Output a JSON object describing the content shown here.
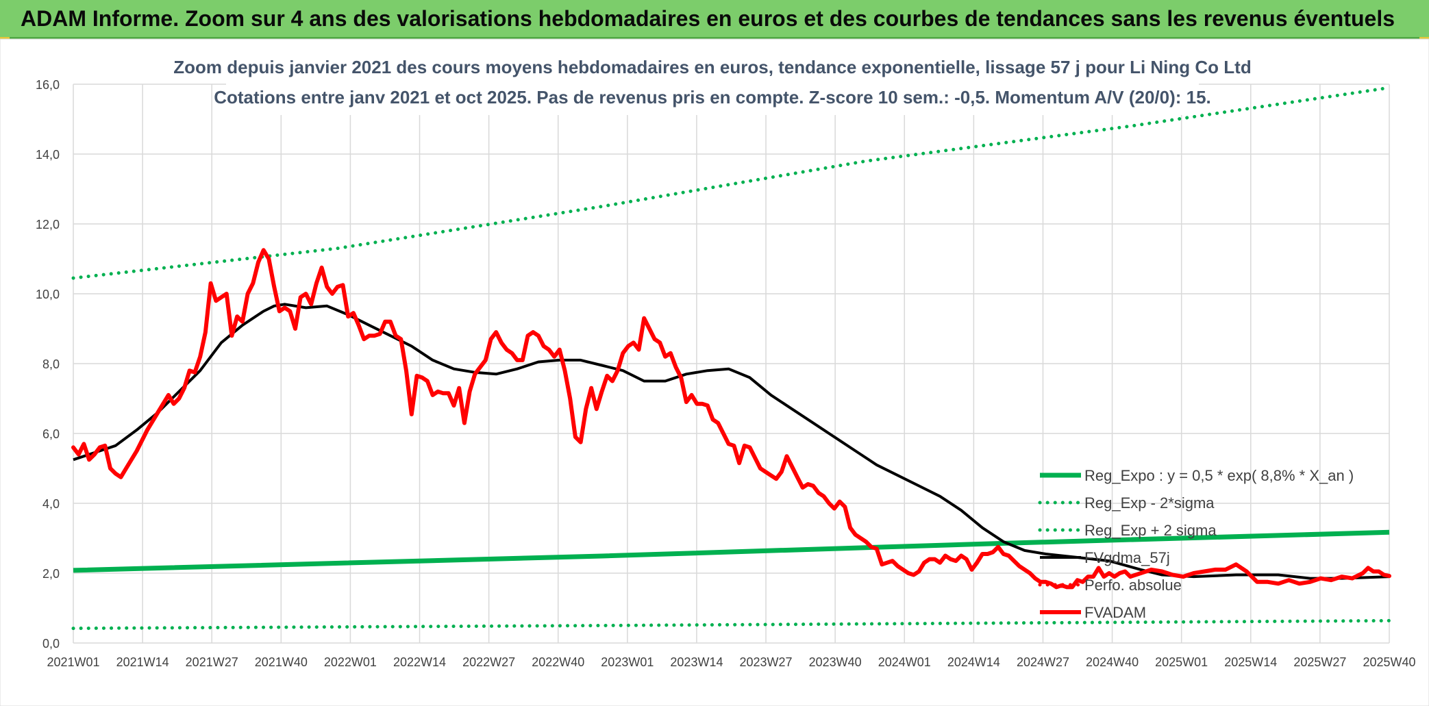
{
  "banner": {
    "title": "ADAM Informe. Zoom sur 4 ans des valorisations hebdomadaires en euros et des courbes de tendances sans les revenus éventuels"
  },
  "chart_data": {
    "type": "line",
    "title": "Zoom depuis janvier 2021 des cours moyens hebdomadaires en euros, tendance exponentielle, lissage 57 j pour Li Ning Co Ltd",
    "subtitle": "Cotations entre janv 2021 et oct 2025. Pas de revenus pris en compte. Z-score 10 sem.: -0,5. Momentum A/V (20/0): 15.",
    "xlabel": "",
    "ylabel": "",
    "ylim": [
      0,
      16
    ],
    "yticks": [
      "0,0",
      "2,0",
      "4,0",
      "6,0",
      "8,0",
      "10,0",
      "12,0",
      "14,0",
      "16,0"
    ],
    "x_tick_labels": [
      "2021W01",
      "2021W14",
      "2021W27",
      "2021W40",
      "2022W01",
      "2022W14",
      "2022W27",
      "2022W40",
      "2023W01",
      "2023W14",
      "2023W27",
      "2023W40",
      "2024W01",
      "2024W14",
      "2024W27",
      "2024W40",
      "2025W01",
      "2025W14",
      "2025W27",
      "2025W40"
    ],
    "grid": true,
    "legend_position": "bottom-right",
    "series": [
      {
        "name": "Reg_Expo : y = 0,5 * exp( 8,8% *  X_an )",
        "color": "#00b050",
        "style": "solid",
        "points": [
          [
            0,
            2.08
          ],
          [
            100,
            2.49
          ],
          [
            175,
            2.85
          ],
          [
            249,
            3.17
          ]
        ]
      },
      {
        "name": "Reg_Exp - 2*sigma",
        "color": "#00b050",
        "style": "dotted",
        "points": [
          [
            0,
            0.42
          ],
          [
            100,
            0.5
          ],
          [
            175,
            0.57
          ],
          [
            249,
            0.64
          ]
        ]
      },
      {
        "name": "Reg_Exp + 2 sigma",
        "color": "#00b050",
        "style": "dotted",
        "points": [
          [
            0,
            10.45
          ],
          [
            50,
            11.3
          ],
          [
            100,
            12.5
          ],
          [
            150,
            13.8
          ],
          [
            200,
            14.8
          ],
          [
            249,
            15.9
          ]
        ]
      },
      {
        "name": "FVgdma_57j",
        "color": "#000000",
        "style": "solid",
        "points": [
          [
            0,
            5.25
          ],
          [
            5,
            5.5
          ],
          [
            8,
            5.65
          ],
          [
            12,
            6.1
          ],
          [
            16,
            6.6
          ],
          [
            20,
            7.2
          ],
          [
            24,
            7.8
          ],
          [
            28,
            8.6
          ],
          [
            32,
            9.1
          ],
          [
            36,
            9.5
          ],
          [
            38,
            9.65
          ],
          [
            40,
            9.7
          ],
          [
            44,
            9.6
          ],
          [
            48,
            9.65
          ],
          [
            52,
            9.4
          ],
          [
            56,
            9.1
          ],
          [
            60,
            8.8
          ],
          [
            64,
            8.5
          ],
          [
            68,
            8.1
          ],
          [
            72,
            7.85
          ],
          [
            76,
            7.75
          ],
          [
            80,
            7.7
          ],
          [
            84,
            7.85
          ],
          [
            88,
            8.05
          ],
          [
            92,
            8.1
          ],
          [
            96,
            8.1
          ],
          [
            100,
            7.95
          ],
          [
            104,
            7.8
          ],
          [
            108,
            7.5
          ],
          [
            112,
            7.5
          ],
          [
            116,
            7.7
          ],
          [
            120,
            7.8
          ],
          [
            124,
            7.85
          ],
          [
            128,
            7.6
          ],
          [
            132,
            7.1
          ],
          [
            136,
            6.7
          ],
          [
            140,
            6.3
          ],
          [
            144,
            5.9
          ],
          [
            148,
            5.5
          ],
          [
            152,
            5.1
          ],
          [
            156,
            4.8
          ],
          [
            160,
            4.5
          ],
          [
            164,
            4.2
          ],
          [
            168,
            3.8
          ],
          [
            172,
            3.3
          ],
          [
            176,
            2.9
          ],
          [
            180,
            2.65
          ],
          [
            184,
            2.55
          ],
          [
            190,
            2.45
          ],
          [
            196,
            2.35
          ],
          [
            202,
            2.1
          ],
          [
            206,
            1.95
          ],
          [
            212,
            1.9
          ],
          [
            220,
            1.95
          ],
          [
            228,
            1.95
          ],
          [
            234,
            1.85
          ],
          [
            240,
            1.85
          ],
          [
            249,
            1.9
          ]
        ]
      },
      {
        "name": "Perfo. absolue",
        "color": "#ff0000",
        "style": "dotted",
        "points": []
      },
      {
        "name": "FVADAM",
        "color": "#ff0000",
        "style": "solid",
        "points": [
          [
            0,
            5.6
          ],
          [
            1,
            5.4
          ],
          [
            2,
            5.7
          ],
          [
            3,
            5.25
          ],
          [
            4,
            5.4
          ],
          [
            5,
            5.6
          ],
          [
            6,
            5.65
          ],
          [
            7,
            5.0
          ],
          [
            8,
            4.85
          ],
          [
            9,
            4.75
          ],
          [
            10,
            5.0
          ],
          [
            12,
            5.5
          ],
          [
            14,
            6.1
          ],
          [
            16,
            6.6
          ],
          [
            18,
            7.1
          ],
          [
            19,
            6.85
          ],
          [
            20,
            7.0
          ],
          [
            21,
            7.3
          ],
          [
            22,
            7.8
          ],
          [
            23,
            7.75
          ],
          [
            24,
            8.2
          ],
          [
            25,
            8.9
          ],
          [
            26,
            10.3
          ],
          [
            27,
            9.8
          ],
          [
            28,
            9.9
          ],
          [
            29,
            10.0
          ],
          [
            30,
            8.8
          ],
          [
            31,
            9.35
          ],
          [
            32,
            9.2
          ],
          [
            33,
            10.0
          ],
          [
            34,
            10.3
          ],
          [
            35,
            10.9
          ],
          [
            36,
            11.25
          ],
          [
            37,
            11.0
          ],
          [
            38,
            10.2
          ],
          [
            39,
            9.5
          ],
          [
            40,
            9.6
          ],
          [
            41,
            9.5
          ],
          [
            42,
            9.0
          ],
          [
            43,
            9.9
          ],
          [
            44,
            10.0
          ],
          [
            45,
            9.7
          ],
          [
            46,
            10.3
          ],
          [
            47,
            10.75
          ],
          [
            48,
            10.2
          ],
          [
            49,
            10.0
          ],
          [
            50,
            10.2
          ],
          [
            51,
            10.25
          ],
          [
            52,
            9.35
          ],
          [
            53,
            9.45
          ],
          [
            54,
            9.1
          ],
          [
            55,
            8.7
          ],
          [
            56,
            8.8
          ],
          [
            57,
            8.8
          ],
          [
            58,
            8.85
          ],
          [
            59,
            9.2
          ],
          [
            60,
            9.2
          ],
          [
            61,
            8.8
          ],
          [
            62,
            8.7
          ],
          [
            63,
            7.8
          ],
          [
            64,
            6.55
          ],
          [
            65,
            7.65
          ],
          [
            66,
            7.6
          ],
          [
            67,
            7.5
          ],
          [
            68,
            7.1
          ],
          [
            69,
            7.2
          ],
          [
            70,
            7.15
          ],
          [
            71,
            7.15
          ],
          [
            72,
            6.8
          ],
          [
            73,
            7.3
          ],
          [
            74,
            6.3
          ],
          [
            75,
            7.2
          ],
          [
            76,
            7.7
          ],
          [
            77,
            7.9
          ],
          [
            78,
            8.1
          ],
          [
            79,
            8.7
          ],
          [
            80,
            8.9
          ],
          [
            81,
            8.6
          ],
          [
            82,
            8.4
          ],
          [
            83,
            8.3
          ],
          [
            84,
            8.1
          ],
          [
            85,
            8.1
          ],
          [
            86,
            8.8
          ],
          [
            87,
            8.9
          ],
          [
            88,
            8.8
          ],
          [
            89,
            8.5
          ],
          [
            90,
            8.4
          ],
          [
            91,
            8.2
          ],
          [
            92,
            8.4
          ],
          [
            93,
            7.8
          ],
          [
            94,
            7.0
          ],
          [
            95,
            5.9
          ],
          [
            96,
            5.75
          ],
          [
            97,
            6.7
          ],
          [
            98,
            7.3
          ],
          [
            99,
            6.7
          ],
          [
            100,
            7.2
          ],
          [
            101,
            7.65
          ],
          [
            102,
            7.5
          ],
          [
            103,
            7.8
          ],
          [
            104,
            8.3
          ],
          [
            105,
            8.5
          ],
          [
            106,
            8.6
          ],
          [
            107,
            8.4
          ],
          [
            108,
            9.3
          ],
          [
            109,
            9.0
          ],
          [
            110,
            8.7
          ],
          [
            111,
            8.6
          ],
          [
            112,
            8.2
          ],
          [
            113,
            8.3
          ],
          [
            114,
            7.9
          ],
          [
            115,
            7.6
          ],
          [
            116,
            6.9
          ],
          [
            117,
            7.1
          ],
          [
            118,
            6.85
          ],
          [
            119,
            6.85
          ],
          [
            120,
            6.8
          ],
          [
            121,
            6.4
          ],
          [
            122,
            6.3
          ],
          [
            123,
            6.0
          ],
          [
            124,
            5.7
          ],
          [
            125,
            5.65
          ],
          [
            126,
            5.15
          ],
          [
            127,
            5.65
          ],
          [
            128,
            5.6
          ],
          [
            129,
            5.3
          ],
          [
            130,
            5.0
          ],
          [
            131,
            4.9
          ],
          [
            132,
            4.8
          ],
          [
            133,
            4.7
          ],
          [
            134,
            4.9
          ],
          [
            135,
            5.35
          ],
          [
            136,
            5.05
          ],
          [
            137,
            4.75
          ],
          [
            138,
            4.45
          ],
          [
            139,
            4.55
          ],
          [
            140,
            4.5
          ],
          [
            141,
            4.3
          ],
          [
            142,
            4.2
          ],
          [
            143,
            4.0
          ],
          [
            144,
            3.85
          ],
          [
            145,
            4.05
          ],
          [
            146,
            3.9
          ],
          [
            147,
            3.3
          ],
          [
            148,
            3.1
          ],
          [
            149,
            3.0
          ],
          [
            150,
            2.9
          ],
          [
            151,
            2.75
          ],
          [
            152,
            2.7
          ],
          [
            153,
            2.25
          ],
          [
            154,
            2.3
          ],
          [
            155,
            2.35
          ],
          [
            156,
            2.2
          ],
          [
            157,
            2.1
          ],
          [
            158,
            2.0
          ],
          [
            159,
            1.95
          ],
          [
            160,
            2.05
          ],
          [
            161,
            2.3
          ],
          [
            162,
            2.4
          ],
          [
            163,
            2.4
          ],
          [
            164,
            2.3
          ],
          [
            165,
            2.5
          ],
          [
            166,
            2.4
          ],
          [
            167,
            2.35
          ],
          [
            168,
            2.5
          ],
          [
            169,
            2.4
          ],
          [
            170,
            2.1
          ],
          [
            171,
            2.3
          ],
          [
            172,
            2.55
          ],
          [
            173,
            2.55
          ],
          [
            174,
            2.6
          ],
          [
            175,
            2.75
          ],
          [
            176,
            2.55
          ],
          [
            177,
            2.5
          ],
          [
            178,
            2.35
          ],
          [
            179,
            2.2
          ],
          [
            180,
            2.1
          ],
          [
            181,
            2.0
          ],
          [
            182,
            1.85
          ],
          [
            183,
            1.75
          ],
          [
            184,
            1.75
          ],
          [
            185,
            1.7
          ],
          [
            186,
            1.6
          ],
          [
            187,
            1.65
          ],
          [
            188,
            1.6
          ],
          [
            189,
            1.6
          ],
          [
            190,
            1.8
          ],
          [
            191,
            1.75
          ],
          [
            192,
            1.9
          ],
          [
            193,
            1.9
          ],
          [
            194,
            2.15
          ],
          [
            195,
            1.9
          ],
          [
            196,
            2.0
          ],
          [
            197,
            1.9
          ],
          [
            198,
            2.0
          ],
          [
            199,
            2.05
          ],
          [
            200,
            1.9
          ],
          [
            202,
            2.0
          ],
          [
            204,
            2.1
          ],
          [
            206,
            2.05
          ],
          [
            208,
            1.95
          ],
          [
            210,
            1.9
          ],
          [
            212,
            2.0
          ],
          [
            214,
            2.05
          ],
          [
            216,
            2.1
          ],
          [
            218,
            2.1
          ],
          [
            220,
            2.25
          ],
          [
            222,
            2.05
          ],
          [
            224,
            1.75
          ],
          [
            226,
            1.75
          ],
          [
            228,
            1.7
          ],
          [
            230,
            1.8
          ],
          [
            232,
            1.7
          ],
          [
            234,
            1.75
          ],
          [
            236,
            1.85
          ],
          [
            238,
            1.8
          ],
          [
            240,
            1.9
          ],
          [
            242,
            1.85
          ],
          [
            244,
            2.0
          ],
          [
            245,
            2.15
          ],
          [
            246,
            2.05
          ],
          [
            247,
            2.05
          ],
          [
            248,
            1.95
          ],
          [
            249,
            1.92
          ]
        ]
      }
    ]
  }
}
